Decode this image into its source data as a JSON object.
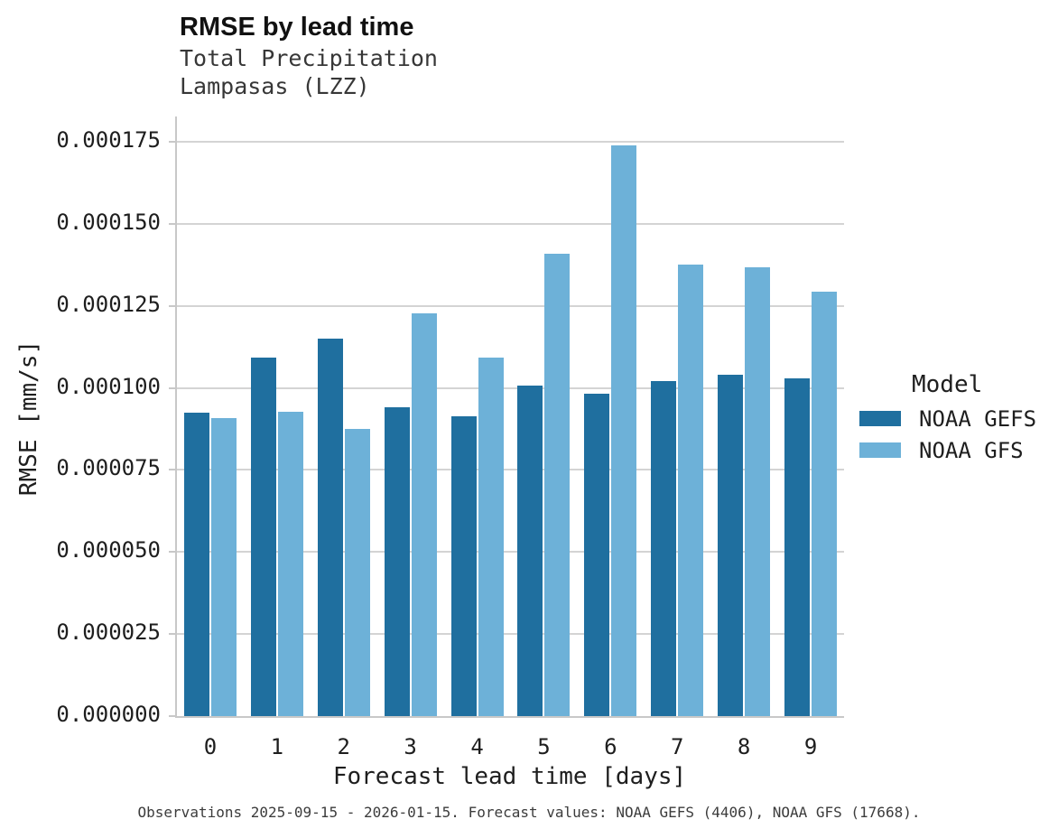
{
  "chart_data": {
    "type": "bar",
    "title": "RMSE by lead time",
    "subtitle": [
      "Total Precipitation",
      "Lampasas (LZZ)"
    ],
    "xlabel": "Forecast lead time [days]",
    "ylabel": "RMSE [mm/s]",
    "categories": [
      "0",
      "1",
      "2",
      "3",
      "4",
      "5",
      "6",
      "7",
      "8",
      "9"
    ],
    "series": [
      {
        "name": "NOAA GEFS",
        "color": "#1f6f9f",
        "values": [
          9.24e-05,
          0.0001092,
          0.000115,
          9.4e-05,
          9.13e-05,
          0.0001006,
          9.82e-05,
          0.000102,
          0.000104,
          0.0001029
        ]
      },
      {
        "name": "NOAA GFS",
        "color": "#6db1d8",
        "values": [
          9.08e-05,
          9.27e-05,
          8.74e-05,
          0.0001226,
          0.0001092,
          0.0001409,
          0.0001738,
          0.0001376,
          0.0001368,
          0.0001293
        ]
      }
    ],
    "yaxis": {
      "tick_values": [
        0,
        2.5e-05,
        5e-05,
        7.5e-05,
        0.0001,
        0.000125,
        0.00015,
        0.000175
      ],
      "tick_labels": [
        "0.000000",
        "0.000025",
        "0.000050",
        "0.000075",
        "0.000100",
        "0.000125",
        "0.000150",
        "0.000175"
      ],
      "ylim": [
        0,
        0.00018275
      ]
    },
    "grid": true,
    "legend": {
      "title": "Model",
      "position": "right"
    },
    "caption": "Observations 2025-09-15 - 2026-01-15. Forecast values: NOAA GEFS (4406), NOAA GFS (17668)."
  },
  "colors": {
    "gridline": "#d4d4d4",
    "axis_line": "#c8c8c8",
    "gefs": "#1f6f9f",
    "gfs": "#6db1d8"
  }
}
